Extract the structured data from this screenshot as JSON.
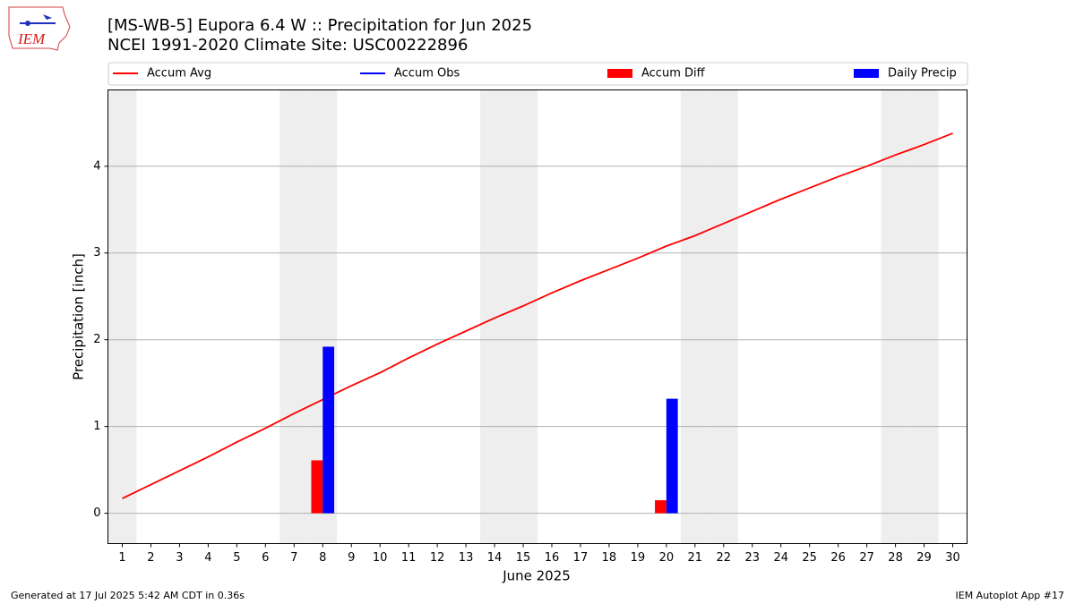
{
  "logo_text": "IEM",
  "footer_left": "Generated at 17 Jul 2025 5:42 AM CDT in 0.36s",
  "footer_right": "IEM Autoplot App #17",
  "chart_data": {
    "type": "bar",
    "title": "[MS-WB-5] Eupora 6.4 W :: Precipitation for Jun 2025",
    "subtitle": "NCEI 1991-2020 Climate Site: USC00222896",
    "xlabel": "June 2025",
    "ylabel": "Precipitation [inch]",
    "x": [
      1,
      2,
      3,
      4,
      5,
      6,
      7,
      8,
      9,
      10,
      11,
      12,
      13,
      14,
      15,
      16,
      17,
      18,
      19,
      20,
      21,
      22,
      23,
      24,
      25,
      26,
      27,
      28,
      29,
      30
    ],
    "xlim": [
      0.5,
      30.5
    ],
    "xticks": [
      1,
      2,
      3,
      4,
      5,
      6,
      7,
      8,
      9,
      10,
      11,
      12,
      13,
      14,
      15,
      16,
      17,
      18,
      19,
      20,
      21,
      22,
      23,
      24,
      25,
      26,
      27,
      28,
      29,
      30
    ],
    "ylim": [
      -0.35,
      4.88
    ],
    "yticks": [
      0,
      1,
      2,
      3,
      4
    ],
    "grid": true,
    "shaded_days": [
      1,
      7,
      8,
      14,
      15,
      21,
      22,
      28,
      29
    ],
    "shade_color": "#eeeeee",
    "series": [
      {
        "name": "Accum Avg",
        "type": "line",
        "color": "#ff0000",
        "values": [
          0.17,
          0.33,
          0.49,
          0.65,
          0.82,
          0.98,
          1.15,
          1.31,
          1.47,
          1.62,
          1.79,
          1.95,
          2.1,
          2.25,
          2.39,
          2.54,
          2.68,
          2.81,
          2.94,
          3.08,
          3.2,
          3.34,
          3.48,
          3.62,
          3.75,
          3.88,
          4.0,
          4.13,
          4.25,
          4.38
        ]
      },
      {
        "name": "Accum Obs",
        "type": "line",
        "color": "#0000ff",
        "values": [
          null,
          null,
          null,
          null,
          null,
          null,
          null,
          null,
          null,
          null,
          null,
          null,
          null,
          null,
          null,
          null,
          null,
          null,
          null,
          null,
          null,
          null,
          null,
          null,
          null,
          null,
          null,
          null,
          null,
          null
        ]
      },
      {
        "name": "Accum Diff",
        "type": "bar",
        "color": "#ff0000",
        "values": [
          null,
          null,
          null,
          null,
          null,
          null,
          null,
          0.61,
          null,
          null,
          null,
          null,
          null,
          null,
          null,
          null,
          null,
          null,
          null,
          0.15,
          null,
          null,
          null,
          null,
          null,
          null,
          null,
          null,
          null,
          null
        ]
      },
      {
        "name": "Daily Precip",
        "type": "bar",
        "color": "#0000ff",
        "values": [
          null,
          null,
          null,
          null,
          null,
          null,
          null,
          1.92,
          null,
          null,
          null,
          null,
          null,
          null,
          null,
          null,
          null,
          null,
          null,
          1.32,
          null,
          null,
          null,
          null,
          null,
          null,
          null,
          null,
          null,
          null
        ]
      }
    ]
  }
}
